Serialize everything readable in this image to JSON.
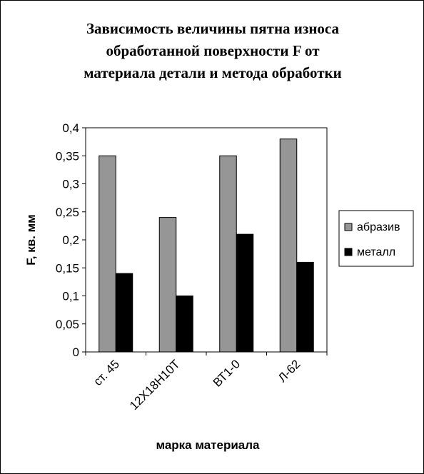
{
  "chart_data": {
    "type": "bar",
    "title_lines": [
      "Зависимость величины пятна износа",
      "обработанной поверхности F от",
      "материала детали и метода обработки"
    ],
    "xlabel": "марка материала",
    "ylabel": "F, кв. мм",
    "categories": [
      "ст. 45",
      "12Х18Н10Т",
      "ВТ1-0",
      "Л-62"
    ],
    "series": [
      {
        "name": "абразив",
        "color": "#969696",
        "values": [
          0.35,
          0.24,
          0.35,
          0.38
        ]
      },
      {
        "name": "металл",
        "color": "#000000",
        "values": [
          0.14,
          0.1,
          0.21,
          0.16
        ]
      }
    ],
    "ylim": [
      0,
      0.4
    ],
    "yticks": [
      "0",
      "0,05",
      "0,1",
      "0,15",
      "0,2",
      "0,25",
      "0,3",
      "0,35",
      "0,4"
    ],
    "grid": false,
    "legend_position": "right"
  }
}
